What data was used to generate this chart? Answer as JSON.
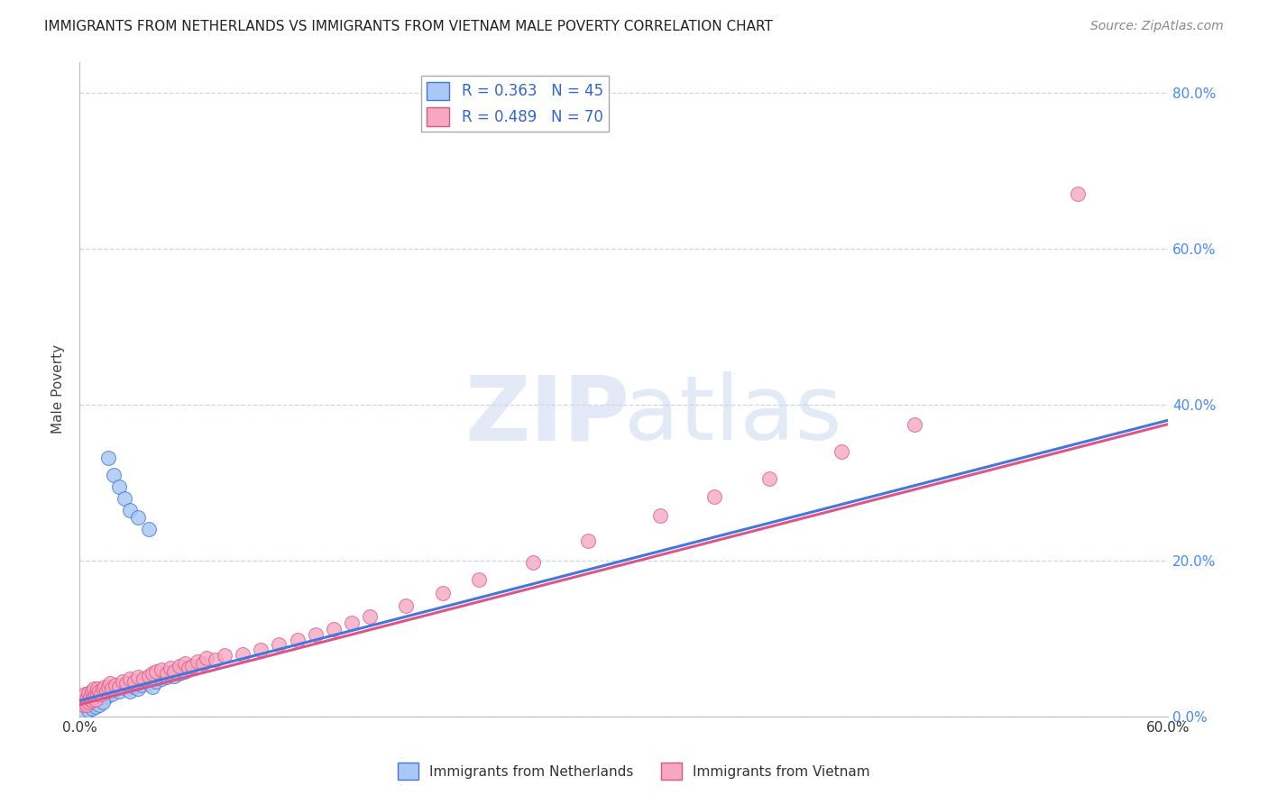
{
  "title": "IMMIGRANTS FROM NETHERLANDS VS IMMIGRANTS FROM VIETNAM MALE POVERTY CORRELATION CHART",
  "source": "Source: ZipAtlas.com",
  "ylabel": "Male Poverty",
  "right_ytick_labels": [
    "0.0%",
    "20.0%",
    "40.0%",
    "60.0%",
    "80.0%"
  ],
  "right_ytick_vals": [
    0.0,
    0.2,
    0.4,
    0.6,
    0.8
  ],
  "legend1_label": "R = 0.363   N = 45",
  "legend2_label": "R = 0.489   N = 70",
  "color_netherlands": "#aac8f5",
  "color_vietnam": "#f5a8c0",
  "line_netherlands": "#4477dd",
  "line_vietnam": "#dd5588",
  "xlim": [
    0.0,
    0.6
  ],
  "ylim": [
    0.0,
    0.84
  ],
  "nl_x": [
    0.002,
    0.003,
    0.004,
    0.005,
    0.006,
    0.007,
    0.008,
    0.009,
    0.01,
    0.011,
    0.012,
    0.013,
    0.014,
    0.015,
    0.016,
    0.018,
    0.02,
    0.022,
    0.024,
    0.026,
    0.028,
    0.03,
    0.032,
    0.034,
    0.038,
    0.04,
    0.042,
    0.045,
    0.048,
    0.052,
    0.055,
    0.058,
    0.003,
    0.005,
    0.007,
    0.009,
    0.011,
    0.013,
    0.016,
    0.019,
    0.022,
    0.025,
    0.028,
    0.032,
    0.038
  ],
  "nl_y": [
    0.02,
    0.015,
    0.018,
    0.022,
    0.018,
    0.025,
    0.022,
    0.028,
    0.025,
    0.03,
    0.028,
    0.022,
    0.032,
    0.025,
    0.03,
    0.028,
    0.035,
    0.032,
    0.038,
    0.035,
    0.032,
    0.038,
    0.035,
    0.04,
    0.042,
    0.038,
    0.045,
    0.048,
    0.05,
    0.052,
    0.055,
    0.058,
    0.005,
    0.008,
    0.01,
    0.012,
    0.015,
    0.018,
    0.332,
    0.31,
    0.295,
    0.28,
    0.265,
    0.255,
    0.24
  ],
  "vn_x": [
    0.001,
    0.002,
    0.002,
    0.003,
    0.003,
    0.004,
    0.004,
    0.005,
    0.005,
    0.006,
    0.006,
    0.007,
    0.007,
    0.008,
    0.008,
    0.009,
    0.009,
    0.01,
    0.01,
    0.011,
    0.012,
    0.013,
    0.014,
    0.015,
    0.016,
    0.017,
    0.018,
    0.02,
    0.022,
    0.024,
    0.026,
    0.028,
    0.03,
    0.032,
    0.035,
    0.038,
    0.04,
    0.042,
    0.045,
    0.048,
    0.05,
    0.052,
    0.055,
    0.058,
    0.06,
    0.062,
    0.065,
    0.068,
    0.07,
    0.075,
    0.08,
    0.09,
    0.1,
    0.11,
    0.12,
    0.13,
    0.14,
    0.15,
    0.16,
    0.18,
    0.2,
    0.22,
    0.25,
    0.28,
    0.32,
    0.35,
    0.38,
    0.42,
    0.46,
    0.55
  ],
  "vn_y": [
    0.018,
    0.015,
    0.025,
    0.02,
    0.028,
    0.015,
    0.022,
    0.018,
    0.03,
    0.022,
    0.025,
    0.02,
    0.032,
    0.025,
    0.035,
    0.022,
    0.028,
    0.03,
    0.035,
    0.032,
    0.028,
    0.035,
    0.038,
    0.032,
    0.038,
    0.042,
    0.035,
    0.04,
    0.038,
    0.045,
    0.042,
    0.048,
    0.045,
    0.05,
    0.048,
    0.052,
    0.055,
    0.058,
    0.06,
    0.055,
    0.062,
    0.058,
    0.065,
    0.068,
    0.062,
    0.065,
    0.07,
    0.068,
    0.075,
    0.072,
    0.078,
    0.08,
    0.085,
    0.092,
    0.098,
    0.105,
    0.112,
    0.12,
    0.128,
    0.142,
    0.158,
    0.175,
    0.198,
    0.225,
    0.258,
    0.282,
    0.305,
    0.34,
    0.375,
    0.67
  ],
  "background_color": "#ffffff"
}
